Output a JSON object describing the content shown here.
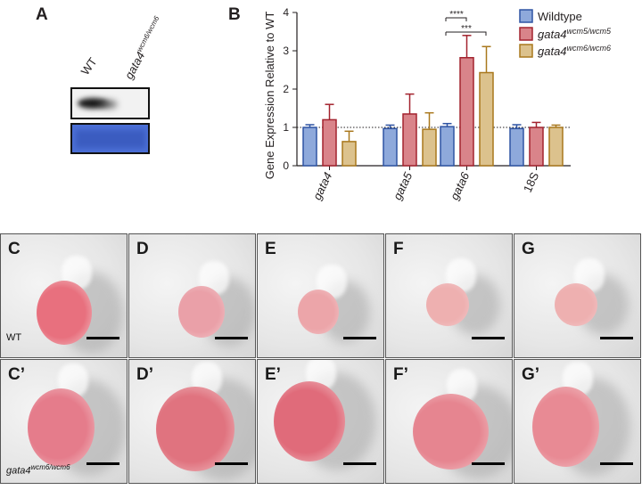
{
  "panel_a": {
    "letter": "A",
    "lane_wt": "WT",
    "lane_mut_base": "gata4",
    "lane_mut_sup": "wcm6/wcm6"
  },
  "panel_b": {
    "letter": "B",
    "legend": [
      {
        "base": "Wildtype",
        "sup": "",
        "color": "#8ea9db",
        "stroke": "#2f54a3"
      },
      {
        "base": "gata4",
        "sup": "wcm5/wcm5",
        "color": "#d9848a",
        "stroke": "#a3232e"
      },
      {
        "base": "gata4",
        "sup": "wcm6/wcm6",
        "color": "#dcc28d",
        "stroke": "#a9781d"
      }
    ],
    "significance": [
      "****",
      "***"
    ]
  },
  "chart_data": {
    "type": "bar",
    "ylabel": "Gene Expression Relative to WT",
    "ylim": [
      0,
      4
    ],
    "yticks": [
      0,
      1,
      2,
      3,
      4
    ],
    "categories": [
      "gata4",
      "gata5",
      "gata6",
      "18S"
    ],
    "reference_line": 1,
    "series": [
      {
        "name": "Wildtype",
        "values": [
          1.0,
          0.97,
          1.02,
          0.97
        ],
        "errors": [
          0.07,
          0.09,
          0.08,
          0.1
        ]
      },
      {
        "name": "gata4 wcm5/wcm5",
        "values": [
          1.2,
          1.35,
          2.82,
          1.0
        ],
        "errors": [
          0.4,
          0.52,
          0.58,
          0.13
        ]
      },
      {
        "name": "gata4 wcm6/wcm6",
        "values": [
          0.63,
          0.95,
          2.43,
          1.0
        ],
        "errors": [
          0.27,
          0.43,
          0.68,
          0.06
        ]
      }
    ]
  },
  "photos": {
    "row1": [
      {
        "letter": "C",
        "caption": "WT"
      },
      {
        "letter": "D",
        "caption": ""
      },
      {
        "letter": "E",
        "caption": ""
      },
      {
        "letter": "F",
        "caption": ""
      },
      {
        "letter": "G",
        "caption": ""
      }
    ],
    "row2": [
      {
        "letter": "C’",
        "caption_base": "gata4",
        "caption_sup": "wcm6/wcm6"
      },
      {
        "letter": "D’",
        "caption_base": "",
        "caption_sup": ""
      },
      {
        "letter": "E’",
        "caption_base": "",
        "caption_sup": ""
      },
      {
        "letter": "F’",
        "caption_base": "",
        "caption_sup": ""
      },
      {
        "letter": "G’",
        "caption_base": "",
        "caption_sup": ""
      }
    ]
  }
}
